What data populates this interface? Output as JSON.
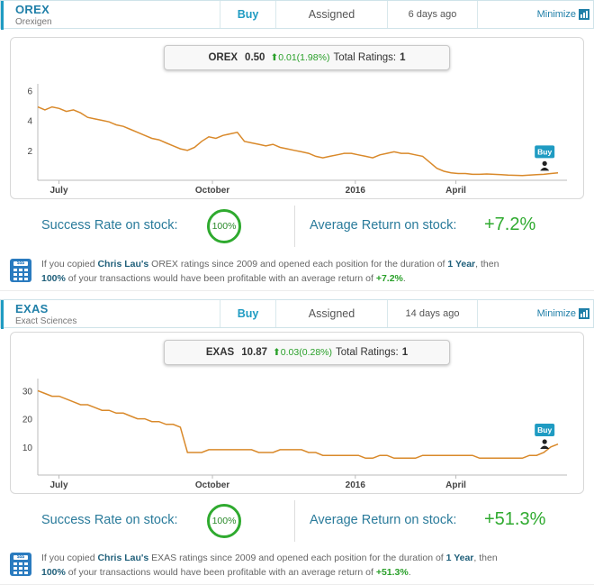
{
  "cards": [
    {
      "ticker": "OREX",
      "company": "Orexigen",
      "rating": "Buy",
      "status": "Assigned",
      "date": "6 days ago",
      "minimize": "Minimize",
      "price_box": {
        "symbol": "OREX",
        "price": "0.50",
        "change": "⬆0.01(1.98%)",
        "total_label": "Total Ratings:",
        "total": "1"
      },
      "chart_data": {
        "type": "line",
        "x_labels": [
          "July",
          "October",
          "2016",
          "April"
        ],
        "y_ticks": [
          "6",
          "4",
          "2"
        ],
        "ylim": [
          0,
          6.2
        ],
        "series": [
          {
            "values": [
              4.9,
              4.7,
              4.9,
              4.8,
              4.6,
              4.7,
              4.5,
              4.2,
              4.1,
              4.0,
              3.9,
              3.7,
              3.6,
              3.4,
              3.2,
              3.0,
              2.8,
              2.7,
              2.5,
              2.3,
              2.1,
              2.0,
              2.2,
              2.6,
              2.9,
              2.8,
              3.0,
              3.1,
              3.2,
              2.6,
              2.5,
              2.4,
              2.3,
              2.4,
              2.2,
              2.1,
              2.0,
              1.9,
              1.8,
              1.6,
              1.5,
              1.6,
              1.7,
              1.8,
              1.8,
              1.7,
              1.6,
              1.5,
              1.7,
              1.8,
              1.9,
              1.8,
              1.8,
              1.7,
              1.6,
              1.2,
              0.8,
              0.6,
              0.5,
              0.45,
              0.45,
              0.4,
              0.4,
              0.42,
              0.4,
              0.38,
              0.35,
              0.33,
              0.32,
              0.35,
              0.38,
              0.4,
              0.45,
              0.5
            ]
          }
        ],
        "marker_label": "Buy",
        "color": "#d9892a"
      },
      "success_label": "Success Rate on stock:",
      "success_value": "100%",
      "avg_label": "Average Return on stock:",
      "avg_value": "+7.2%",
      "summary": {
        "p1": "If you copied ",
        "analyst": "Chris Lau's",
        "p2": " OREX ratings since 2009 and opened each position for the duration of ",
        "duration": "1 Year",
        "p3": ", then",
        "pct": "100%",
        "p4": " of your transactions would have been profitable with an average return of ",
        "ret": "+7.2%",
        "p5": "."
      }
    },
    {
      "ticker": "EXAS",
      "company": "Exact Sciences",
      "rating": "Buy",
      "status": "Assigned",
      "date": "14 days ago",
      "minimize": "Minimize",
      "price_box": {
        "symbol": "EXAS",
        "price": "10.87",
        "change": "⬆0.03(0.28%)",
        "total_label": "Total Ratings:",
        "total": "1"
      },
      "chart_data": {
        "type": "line",
        "x_labels": [
          "July",
          "October",
          "2016",
          "April"
        ],
        "y_ticks": [
          "30",
          "20",
          "10"
        ],
        "ylim": [
          0,
          33
        ],
        "series": [
          {
            "values": [
              30,
              29,
              28,
              28,
              27,
              26,
              25,
              25,
              24,
              23,
              23,
              22,
              22,
              21,
              20,
              20,
              19,
              19,
              18,
              18,
              17,
              8,
              8,
              8,
              9,
              9,
              9,
              9,
              9,
              9,
              9,
              8,
              8,
              8,
              9,
              9,
              9,
              9,
              8,
              8,
              7,
              7,
              7,
              7,
              7,
              7,
              6,
              6,
              7,
              7,
              6,
              6,
              6,
              6,
              7,
              7,
              7,
              7,
              7,
              7,
              7,
              7,
              6,
              6,
              6,
              6,
              6,
              6,
              6,
              7,
              7,
              8,
              10,
              11
            ]
          }
        ],
        "marker_label": "Buy",
        "color": "#d9892a"
      },
      "success_label": "Success Rate on stock:",
      "success_value": "100%",
      "avg_label": "Average Return on stock:",
      "avg_value": "+51.3%",
      "summary": {
        "p1": "If you copied ",
        "analyst": "Chris Lau's",
        "p2": " EXAS ratings since 2009 and opened each position for the duration of ",
        "duration": "1 Year",
        "p3": ", then",
        "pct": "100%",
        "p4": " of your transactions would have been profitable with an average return of ",
        "ret": "+51.3%",
        "p5": "."
      }
    }
  ]
}
